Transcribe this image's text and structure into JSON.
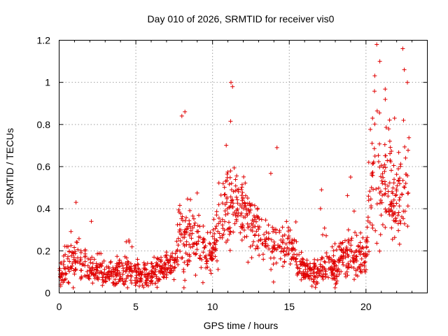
{
  "chart_data": {
    "type": "scatter",
    "title": "Day 010 of 2026, SRMTID for receiver vis0",
    "xlabel": "GPS time / hours",
    "ylabel": "SRMTID / TECUs",
    "xlim": [
      0,
      24
    ],
    "ylim": [
      0,
      1.2
    ],
    "x_ticks": [
      "0",
      "5",
      "10",
      "15",
      "20"
    ],
    "x_tick_values": [
      0,
      5,
      10,
      15,
      20
    ],
    "y_ticks": [
      "0",
      "0.2",
      "0.4",
      "0.6",
      "0.8",
      "1",
      "1.2"
    ],
    "y_tick_values": [
      0,
      0.2,
      0.4,
      0.6,
      0.8,
      1.0,
      1.2
    ],
    "grid": true,
    "marker": "plus",
    "series_color": "#e00000",
    "profile": {
      "description": "approximate envelope of the scattered SRMTID points per GPS hour",
      "hours": [
        0.0,
        0.5,
        1.0,
        1.5,
        2.0,
        2.5,
        3.0,
        3.5,
        4.0,
        4.5,
        5.0,
        5.5,
        6.0,
        6.5,
        7.0,
        7.5,
        8.0,
        8.5,
        9.0,
        9.5,
        10.0,
        10.5,
        11.0,
        11.5,
        12.0,
        12.5,
        13.0,
        13.5,
        14.0,
        14.5,
        15.0,
        15.5,
        16.0,
        16.5,
        17.0,
        17.5,
        18.0,
        18.5,
        19.0,
        19.5,
        20.0,
        20.5,
        21.0,
        21.5,
        22.0,
        22.5,
        22.8
      ],
      "median": [
        0.09,
        0.13,
        0.16,
        0.15,
        0.12,
        0.1,
        0.09,
        0.09,
        0.1,
        0.1,
        0.09,
        0.08,
        0.09,
        0.1,
        0.12,
        0.14,
        0.26,
        0.28,
        0.24,
        0.2,
        0.18,
        0.34,
        0.38,
        0.44,
        0.4,
        0.33,
        0.28,
        0.25,
        0.22,
        0.24,
        0.25,
        0.16,
        0.1,
        0.09,
        0.11,
        0.12,
        0.13,
        0.16,
        0.17,
        0.16,
        0.18,
        0.58,
        0.5,
        0.48,
        0.4,
        0.5,
        0.6
      ],
      "spread": [
        0.04,
        0.06,
        0.08,
        0.07,
        0.05,
        0.04,
        0.04,
        0.04,
        0.04,
        0.05,
        0.04,
        0.04,
        0.04,
        0.05,
        0.05,
        0.06,
        0.14,
        0.12,
        0.08,
        0.07,
        0.06,
        0.12,
        0.16,
        0.14,
        0.12,
        0.09,
        0.08,
        0.07,
        0.08,
        0.1,
        0.08,
        0.06,
        0.04,
        0.04,
        0.05,
        0.05,
        0.06,
        0.07,
        0.08,
        0.06,
        0.06,
        0.25,
        0.22,
        0.2,
        0.16,
        0.18,
        0.14
      ],
      "peak": [
        0.13,
        0.26,
        0.43,
        0.29,
        0.34,
        0.19,
        0.2,
        0.18,
        0.2,
        0.26,
        0.2,
        0.17,
        0.17,
        0.17,
        0.2,
        0.22,
        0.86,
        0.8,
        0.5,
        0.35,
        0.4,
        0.6,
        1.0,
        0.72,
        0.62,
        0.55,
        0.4,
        0.4,
        0.69,
        0.46,
        0.4,
        0.33,
        0.2,
        0.22,
        0.49,
        0.28,
        0.27,
        0.36,
        0.55,
        0.4,
        0.38,
        1.18,
        1.08,
        0.95,
        0.8,
        1.16,
        1.0
      ]
    },
    "notable_points": [
      {
        "x": 1.1,
        "y": 0.43
      },
      {
        "x": 2.1,
        "y": 0.34
      },
      {
        "x": 8.0,
        "y": 0.84
      },
      {
        "x": 8.2,
        "y": 0.86
      },
      {
        "x": 11.2,
        "y": 1.0
      },
      {
        "x": 11.3,
        "y": 0.98
      },
      {
        "x": 14.2,
        "y": 0.69
      },
      {
        "x": 17.1,
        "y": 0.49
      },
      {
        "x": 19.0,
        "y": 0.55
      },
      {
        "x": 20.7,
        "y": 1.18
      },
      {
        "x": 20.9,
        "y": 1.1
      },
      {
        "x": 22.4,
        "y": 1.16
      },
      {
        "x": 22.5,
        "y": 1.06
      },
      {
        "x": 22.7,
        "y": 1.0
      }
    ],
    "point_count": 1400
  }
}
